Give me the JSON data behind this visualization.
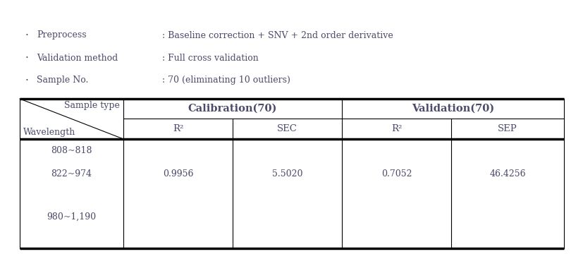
{
  "bg_color": "#ffffff",
  "text_color": "#4a4a6a",
  "bullet_items": [
    [
      "Preprocess",
      ": Baseline correction + SNV + 2nd order derivative"
    ],
    [
      "Validation method",
      ": Full cross validation"
    ],
    [
      "Sample No.",
      ": 70 (eliminating 10 outliers)"
    ]
  ],
  "header_row2_labels": [
    "R²",
    "SEC",
    "R²",
    "SEP"
  ],
  "data_rows": [
    [
      "808~818",
      "",
      "",
      "",
      ""
    ],
    [
      "822~974",
      "0.9956",
      "5.5020",
      "0.7052",
      "46.4256"
    ],
    [
      "980~1,190",
      "",
      "",
      "",
      ""
    ]
  ],
  "font_size": 9,
  "header_font_size": 9.5
}
